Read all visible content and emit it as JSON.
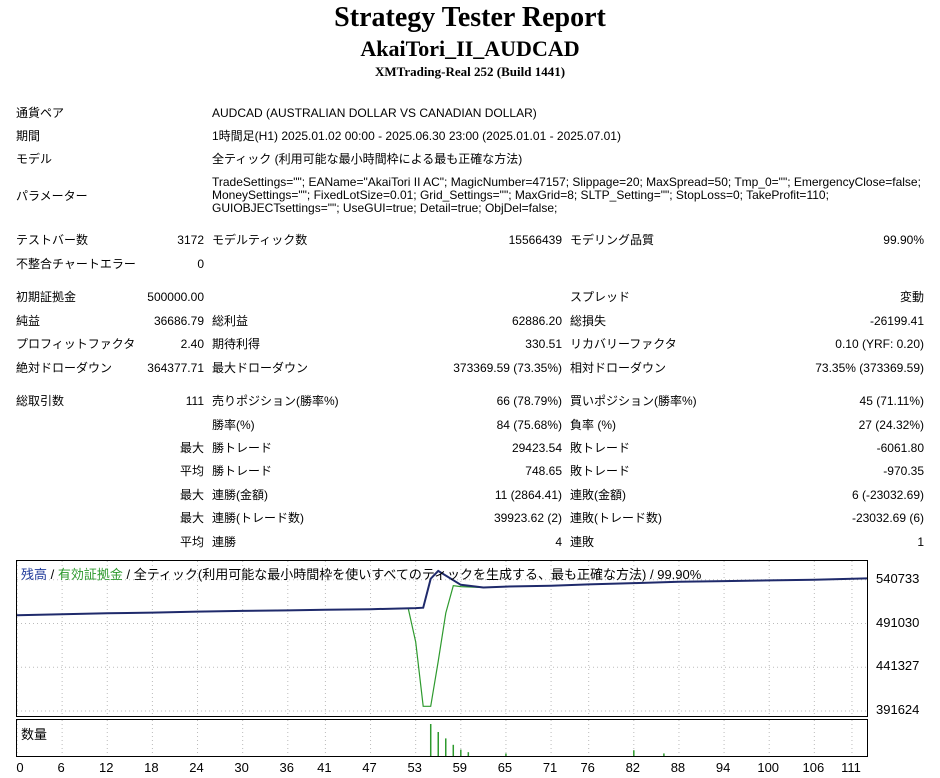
{
  "header": {
    "title": "Strategy Tester Report",
    "subtitle": "AkaiTori_II_AUDCAD",
    "server": "XMTrading-Real 252 (Build 1441)"
  },
  "settings": {
    "symbol_label": "通貨ペア",
    "symbol_value": "AUDCAD (AUSTRALIAN DOLLAR VS CANADIAN DOLLAR)",
    "period_label": "期間",
    "period_value": "1時間足(H1) 2025.01.02 00:00 - 2025.06.30 23:00 (2025.01.01 - 2025.07.01)",
    "model_label": "モデル",
    "model_value": "全ティック (利用可能な最小時間枠による最も正確な方法)",
    "params_label": "パラメーター",
    "params_line1": "TradeSettings=\"\"; EAName=\"AkaiTori II AC\"; MagicNumber=47157; Slippage=20; MaxSpread=50; Tmp_0=\"\"; EmergencyClose=false;",
    "params_line2": "MoneySettings=\"\"; FixedLotSize=0.01; Grid_Settings=\"\"; MaxGrid=8; SLTP_Setting=\"\"; StopLoss=0; TakeProfit=110;",
    "params_line3": "GUIOBJECTsettings=\"\"; UseGUI=true; Detail=true; ObjDel=false;"
  },
  "stats": {
    "bars_label": "テストバー数",
    "bars_value": "3172",
    "ticks_label": "モデルティック数",
    "ticks_value": "15566439",
    "quality_label": "モデリング品質",
    "quality_value": "99.90%",
    "mismatch_label": "不整合チャートエラー",
    "mismatch_value": "0",
    "deposit_label": "初期証拠金",
    "deposit_value": "500000.00",
    "spread_label": "スプレッド",
    "spread_value": "変動",
    "net_label": "純益",
    "net_value": "36686.79",
    "gross_profit_label": "総利益",
    "gross_profit_value": "62886.20",
    "gross_loss_label": "総損失",
    "gross_loss_value": "-26199.41",
    "pf_label": "プロフィットファクタ",
    "pf_value": "2.40",
    "expected_label": "期待利得",
    "expected_value": "330.51",
    "recovery_label": "リカバリーファクタ",
    "recovery_value": "0.10 (YRF: 0.20)",
    "abs_dd_label": "絶対ドローダウン",
    "abs_dd_value": "364377.71",
    "max_dd_label": "最大ドローダウン",
    "max_dd_value": "373369.59 (73.35%)",
    "rel_dd_label": "相対ドローダウン",
    "rel_dd_value": "73.35% (373369.59)",
    "total_trades_label": "総取引数",
    "total_trades_value": "111",
    "short_label": "売りポジション(勝率%)",
    "short_value": "66 (78.79%)",
    "long_label": "買いポジション(勝率%)",
    "long_value": "45 (71.11%)",
    "win_rate_label": "勝率(%)",
    "win_rate_value": "84 (75.68%)",
    "loss_rate_label": "負率 (%)",
    "loss_rate_value": "27 (24.32%)",
    "max_prefix": "最大",
    "avg_prefix": "平均",
    "max_win_label": "勝トレード",
    "max_win_value": "29423.54",
    "max_loss_label": "敗トレード",
    "max_loss_value": "-6061.80",
    "avg_win_label": "勝トレード",
    "avg_win_value": "748.65",
    "avg_loss_label": "敗トレード",
    "avg_loss_value": "-970.35",
    "max_cons_win_amt_label": "連勝(金額)",
    "max_cons_win_amt_value": "11 (2864.41)",
    "max_cons_loss_amt_label": "連敗(金額)",
    "max_cons_loss_amt_value": "6 (-23032.69)",
    "max_cons_win_cnt_label": "連勝(トレード数)",
    "max_cons_win_cnt_value": "39923.62 (2)",
    "max_cons_loss_cnt_label": "連敗(トレード数)",
    "max_cons_loss_cnt_value": "-23032.69 (6)",
    "avg_cons_win_label": "連勝",
    "avg_cons_win_value": "4",
    "avg_cons_loss_label": "連敗",
    "avg_cons_loss_value": "1"
  },
  "chart_legend": {
    "balance": "残高",
    "sep1": " / ",
    "equity": "有効証拠金",
    "rest": " / 全ティック(利用可能な最小時間枠を使いすべてのティックを生成する、最も正確な方法) / 99.90%",
    "volume": "数量"
  },
  "chart_data": {
    "type": "line",
    "balance_color": "#1f2a6b",
    "equity_color": "#2e9a2e",
    "y_ticks": [
      "540733",
      "491030",
      "441327",
      "391624"
    ],
    "ylim": [
      391624,
      553000
    ],
    "x_ticks": [
      "0",
      "6",
      "12",
      "18",
      "24",
      "30",
      "36",
      "41",
      "47",
      "53",
      "59",
      "65",
      "71",
      "76",
      "82",
      "88",
      "94",
      "100",
      "106",
      "111"
    ],
    "xlim": [
      0,
      113
    ],
    "balance": [
      [
        0,
        500500
      ],
      [
        6,
        501500
      ],
      [
        12,
        502600
      ],
      [
        18,
        503400
      ],
      [
        24,
        504600
      ],
      [
        30,
        505400
      ],
      [
        36,
        506000
      ],
      [
        41,
        506600
      ],
      [
        47,
        507300
      ],
      [
        53,
        508600
      ],
      [
        54,
        509000
      ],
      [
        55,
        542000
      ],
      [
        56,
        550800
      ],
      [
        59,
        535000
      ],
      [
        62,
        532000
      ],
      [
        65,
        533000
      ],
      [
        71,
        534000
      ],
      [
        76,
        535500
      ],
      [
        82,
        537000
      ],
      [
        88,
        538500
      ],
      [
        94,
        539200
      ],
      [
        100,
        540000
      ],
      [
        106,
        540700
      ],
      [
        113,
        542300
      ]
    ],
    "equity": [
      [
        0,
        500500
      ],
      [
        6,
        501500
      ],
      [
        12,
        502600
      ],
      [
        18,
        503400
      ],
      [
        24,
        504600
      ],
      [
        30,
        505400
      ],
      [
        36,
        506000
      ],
      [
        41,
        506600
      ],
      [
        47,
        507300
      ],
      [
        52,
        508400
      ],
      [
        53,
        470000
      ],
      [
        54,
        397000
      ],
      [
        55,
        397000
      ],
      [
        56,
        448000
      ],
      [
        57,
        503000
      ],
      [
        58,
        534000
      ],
      [
        59,
        533000
      ],
      [
        62,
        532000
      ],
      [
        65,
        533000
      ],
      [
        71,
        534000
      ],
      [
        76,
        535500
      ],
      [
        82,
        537000
      ],
      [
        88,
        538500
      ],
      [
        94,
        539200
      ],
      [
        100,
        540000
      ],
      [
        106,
        540700
      ],
      [
        113,
        542300
      ]
    ],
    "volume_bars": [
      [
        55,
        1.0
      ],
      [
        56,
        0.75
      ],
      [
        57,
        0.55
      ],
      [
        58,
        0.35
      ],
      [
        59,
        0.2
      ],
      [
        60,
        0.12
      ],
      [
        65,
        0.08
      ],
      [
        82,
        0.18
      ],
      [
        86,
        0.08
      ]
    ]
  }
}
